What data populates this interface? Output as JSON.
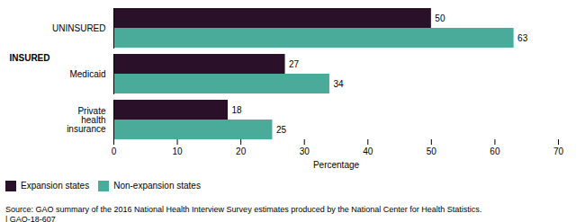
{
  "chart_data": {
    "type": "bar",
    "orientation": "horizontal",
    "categories": [
      "UNINSURED",
      "Medicaid",
      "Private\nhealth\ninsurance"
    ],
    "series": [
      {
        "name": "Expansion states",
        "color": "#2b1029",
        "values": [
          50,
          27,
          18
        ]
      },
      {
        "name": "Non-expansion states",
        "color": "#4aab9b",
        "values": [
          63,
          34,
          25
        ]
      }
    ],
    "xlabel": "Percentage",
    "xlim": [
      0,
      70
    ],
    "xticks": [
      0,
      10,
      20,
      30,
      40,
      50,
      60,
      70
    ],
    "grid": false,
    "legend": "lower left",
    "data_labels": true,
    "annotations": [
      {
        "text": "INSURED",
        "category": "Medicaid"
      }
    ],
    "caption": "Source: GAO summary of the 2016 National Health Interview Survey estimates produced by the National Center for Health Statistics.\n| GAO-18-607"
  }
}
